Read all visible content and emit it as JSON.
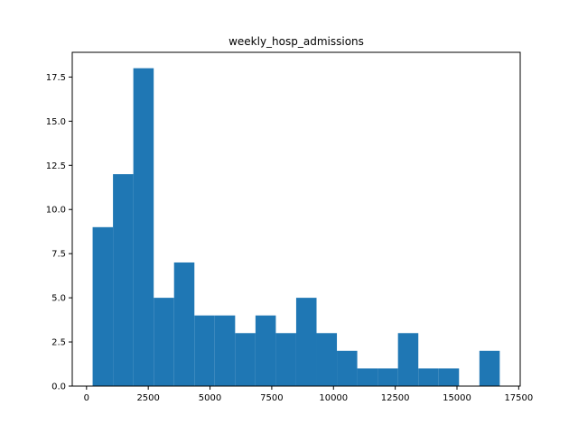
{
  "chart_data": {
    "type": "bar",
    "title": "weekly_hosp_admissions",
    "xlabel": "",
    "ylabel": "",
    "xlim": [
      -578,
      17560
    ],
    "ylim": [
      0,
      18.9
    ],
    "x_ticks": [
      0,
      2500,
      5000,
      7500,
      10000,
      12500,
      15000,
      17500
    ],
    "x_tick_labels": [
      "0",
      "2500",
      "5000",
      "7500",
      "10000",
      "12500",
      "15000",
      "17500"
    ],
    "y_ticks": [
      0,
      2.5,
      5,
      7.5,
      10,
      12.5,
      15,
      17.5
    ],
    "y_tick_labels": [
      "0.0",
      "2.5",
      "5.0",
      "7.5",
      "10.0",
      "12.5",
      "15.0",
      "17.5"
    ],
    "bin_edges": [
      247,
      1071,
      1895,
      2720,
      3544,
      4368,
      5192,
      6017,
      6841,
      7665,
      8489,
      9314,
      10138,
      10962,
      11786,
      12611,
      13435,
      14259,
      15083,
      15908,
      16732
    ],
    "counts": [
      9,
      12,
      18,
      5,
      7,
      4,
      4,
      3,
      4,
      3,
      5,
      3,
      2,
      1,
      1,
      3,
      1,
      1,
      0,
      2
    ],
    "bar_color": "#1f77b4",
    "grid": false,
    "legend": "none"
  }
}
